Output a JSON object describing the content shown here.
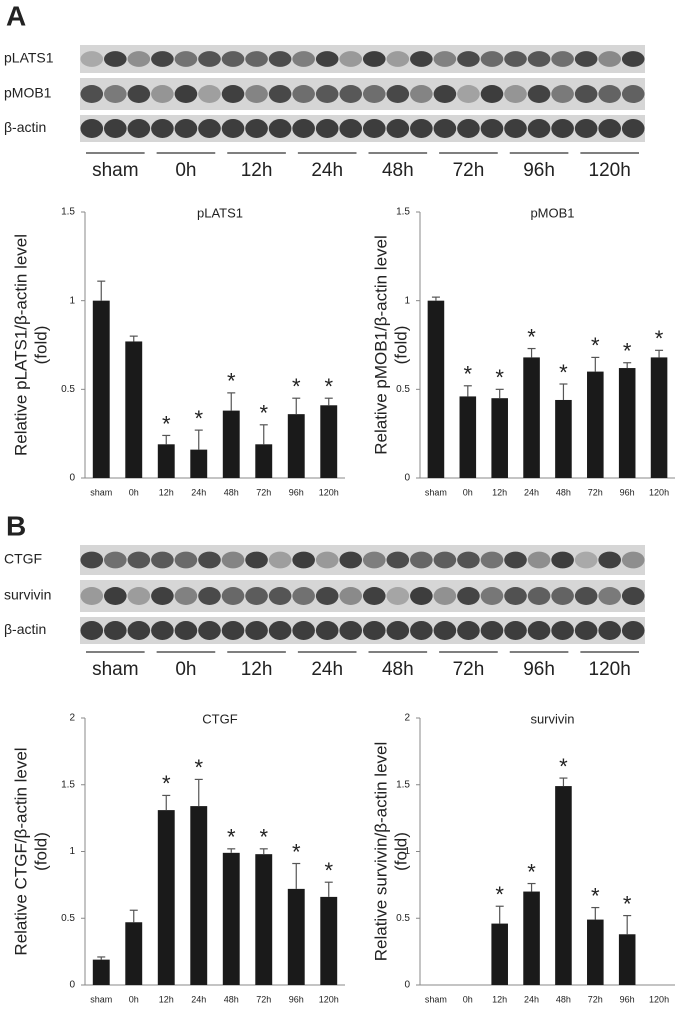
{
  "blots": [
    {
      "panel": "A",
      "rows": [
        "pLATS1",
        "pMOB1",
        "β-actin"
      ],
      "lanes": [
        "sham",
        "0h",
        "12h",
        "24h",
        "48h",
        "72h",
        "96h",
        "120h"
      ]
    },
    {
      "panel": "B",
      "rows": [
        "CTGF",
        "survivin",
        "β-actin"
      ],
      "lanes": [
        "sham",
        "0h",
        "12h",
        "24h",
        "48h",
        "72h",
        "96h",
        "120h"
      ]
    }
  ],
  "chart_data": [
    {
      "type": "bar",
      "title": "pLATS1",
      "ylabel": [
        "Relative pLATS1/β-actin level",
        "(fold)"
      ],
      "categories": [
        "sham",
        "0h",
        "12h",
        "24h",
        "48h",
        "72h",
        "96h",
        "120h"
      ],
      "values": [
        1.0,
        0.77,
        0.19,
        0.16,
        0.38,
        0.19,
        0.36,
        0.41
      ],
      "errors": [
        0.11,
        0.03,
        0.05,
        0.11,
        0.1,
        0.11,
        0.09,
        0.04
      ],
      "significance": [
        null,
        null,
        "*",
        "*",
        "*",
        "*",
        "*",
        "*"
      ],
      "color": "#1a1a1a",
      "ylim": [
        0,
        1.5
      ],
      "yticks": [
        0,
        0.5,
        1,
        1.5
      ]
    },
    {
      "type": "bar",
      "title": "pMOB1",
      "ylabel": [
        "Relative pMOB1/β-actin level",
        "(fold)"
      ],
      "categories": [
        "sham",
        "0h",
        "12h",
        "24h",
        "48h",
        "72h",
        "96h",
        "120h"
      ],
      "values": [
        1.0,
        0.46,
        0.45,
        0.68,
        0.44,
        0.6,
        0.62,
        0.68
      ],
      "errors": [
        0.02,
        0.06,
        0.05,
        0.05,
        0.09,
        0.08,
        0.03,
        0.04
      ],
      "significance": [
        null,
        "*",
        "*",
        "*",
        "*",
        "*",
        "*",
        "*"
      ],
      "color": "#1a1a1a",
      "ylim": [
        0,
        1.5
      ],
      "yticks": [
        0,
        0.5,
        1,
        1.5
      ]
    },
    {
      "type": "bar",
      "title": "CTGF",
      "ylabel": [
        "Relative CTGF/β-actin level",
        "(fold)"
      ],
      "categories": [
        "sham",
        "0h",
        "12h",
        "24h",
        "48h",
        "72h",
        "96h",
        "120h"
      ],
      "values": [
        0.19,
        0.47,
        1.31,
        1.34,
        0.99,
        0.98,
        0.72,
        0.66
      ],
      "errors": [
        0.02,
        0.09,
        0.11,
        0.2,
        0.03,
        0.04,
        0.19,
        0.11
      ],
      "significance": [
        null,
        null,
        "*",
        "*",
        "*",
        "*",
        "*",
        "*"
      ],
      "color": "#1a1a1a",
      "ylim": [
        0,
        2
      ],
      "yticks": [
        0,
        0.5,
        1,
        1.5,
        2
      ]
    },
    {
      "type": "bar",
      "title": "survivin",
      "ylabel": [
        "Relative survivin/β-actin level",
        "(fold)"
      ],
      "categories": [
        "sham",
        "0h",
        "12h",
        "24h",
        "48h",
        "72h",
        "96h",
        "120h"
      ],
      "values": [
        0,
        0,
        0.46,
        0.7,
        1.49,
        0.49,
        0.38,
        0
      ],
      "errors": [
        null,
        null,
        0.13,
        0.06,
        0.06,
        0.09,
        0.14,
        null
      ],
      "significance": [
        null,
        null,
        "*",
        "*",
        "*",
        "*",
        "*",
        null
      ],
      "color": "#1a1a1a",
      "ylim": [
        0,
        2
      ],
      "yticks": [
        0,
        0.5,
        1,
        1.5,
        2
      ]
    }
  ]
}
